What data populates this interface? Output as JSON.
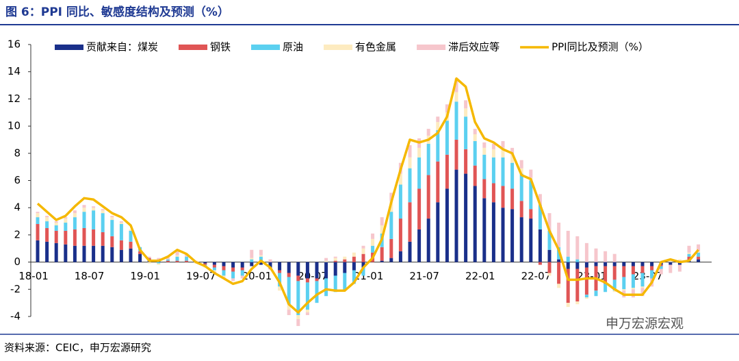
{
  "chart_data": {
    "type": "stacked_bar_line",
    "title": "图 6：PPI 同比、敏感度结构及预测（%）",
    "source": "资料来源：CEIC，申万宏源研究",
    "watermark": "申万宏源宏观",
    "categories": [
      "18-01",
      null,
      null,
      null,
      null,
      null,
      "18-07",
      null,
      null,
      null,
      null,
      null,
      "19-01",
      null,
      null,
      null,
      null,
      null,
      "19-07",
      null,
      null,
      null,
      null,
      null,
      "20-01",
      null,
      null,
      null,
      null,
      null,
      "20-07",
      null,
      null,
      null,
      null,
      null,
      "21-01",
      null,
      null,
      null,
      null,
      null,
      "21-07",
      null,
      null,
      null,
      null,
      null,
      "22-01",
      null,
      null,
      null,
      null,
      null,
      "22-07",
      null,
      null,
      null,
      null,
      null,
      "23-01",
      null,
      null,
      null,
      null,
      null,
      "23-07",
      null,
      null,
      null,
      null,
      null
    ],
    "ylim": [
      -4,
      16
    ],
    "yticks": [
      -4,
      -2,
      0,
      2,
      4,
      6,
      8,
      10,
      12,
      14,
      16
    ],
    "series": [
      {
        "name": "贡献来自：煤炭",
        "color": "#1a2f8a",
        "values": [
          1.6,
          1.5,
          1.4,
          1.3,
          1.2,
          1.2,
          1.2,
          1.2,
          1.1,
          0.9,
          1.0,
          0.6,
          0.2,
          0.1,
          0,
          0,
          0,
          0,
          -0.1,
          -0.2,
          -0.3,
          -0.4,
          -0.4,
          -0.3,
          -0.2,
          -0.4,
          -0.6,
          -0.8,
          -1.0,
          -1.2,
          -1.2,
          -1.2,
          -1.0,
          -0.8,
          -0.6,
          -0.4,
          0,
          0.1,
          0.3,
          0.8,
          1.5,
          2.4,
          3.2,
          4.4,
          5.4,
          6.8,
          6.5,
          5.6,
          4.7,
          4.4,
          4.0,
          3.9,
          3.3,
          3.2,
          2.4,
          0.9,
          0.2,
          -0.5,
          -0.5,
          -0.4,
          -0.3,
          -0.3,
          -0.3,
          -0.3,
          -0.3,
          -0.3,
          -0.3,
          -0.2,
          -0.2,
          -0.2,
          0.1,
          0.2
        ]
      },
      {
        "name": "钢铁",
        "color": "#e05555",
        "values": [
          1.2,
          1.0,
          0.9,
          1.0,
          1.2,
          1.3,
          1.2,
          1.0,
          0.8,
          0.7,
          0.5,
          0.2,
          0.1,
          0,
          0.1,
          0.1,
          0.1,
          0,
          -0.1,
          -0.2,
          -0.3,
          -0.3,
          -0.2,
          0,
          0,
          -0.1,
          -0.2,
          -0.3,
          -0.4,
          -0.3,
          -0.2,
          0,
          0.1,
          0.2,
          0.4,
          0.6,
          0.7,
          1.0,
          1.4,
          2.4,
          2.9,
          3.0,
          3.2,
          3.0,
          2.5,
          2.2,
          1.8,
          1.5,
          1.4,
          1.4,
          1.6,
          1.5,
          1.2,
          0.7,
          -0.2,
          -0.8,
          -1.6,
          -2.5,
          -2.4,
          -2.0,
          -1.8,
          -1.3,
          -1.0,
          -0.8,
          -0.6,
          -0.5,
          -0.3,
          -0.1,
          0,
          0.1,
          0.3,
          0.2
        ]
      },
      {
        "name": "原油",
        "color": "#5bd0f0",
        "values": [
          0.5,
          0.5,
          0.4,
          0.6,
          0.9,
          1.2,
          1.4,
          1.4,
          1.2,
          1.2,
          0.8,
          0.3,
          0,
          -0.1,
          0.1,
          0.3,
          0.3,
          0,
          -0.1,
          -0.2,
          -0.4,
          -0.5,
          -0.4,
          0.2,
          0.4,
          0,
          -1.0,
          -2.0,
          -2.5,
          -2.0,
          -1.6,
          -1.3,
          -1.2,
          -1.3,
          -1.0,
          -0.6,
          0.5,
          1.0,
          2.0,
          2.5,
          2.5,
          2.3,
          2.3,
          2.3,
          2.5,
          2.8,
          2.4,
          1.8,
          1.8,
          1.9,
          2.1,
          1.9,
          2.0,
          2.1,
          1.8,
          1.4,
          0.9,
          0.4,
          0.2,
          -0.2,
          -0.4,
          -0.6,
          -0.8,
          -0.9,
          -1.0,
          -1.0,
          -0.6,
          -0.2,
          0,
          0,
          0.2,
          0.3
        ]
      },
      {
        "name": "有色金属",
        "color": "#fdebc0",
        "values": [
          0.3,
          0.3,
          0.2,
          0.3,
          0.3,
          0.3,
          0.2,
          0.2,
          0.2,
          0.1,
          0.1,
          0,
          -0.1,
          -0.1,
          0,
          0.1,
          0,
          -0.1,
          -0.1,
          -0.1,
          -0.1,
          0,
          0,
          0.1,
          0.1,
          -0.1,
          -0.3,
          -0.4,
          -0.3,
          -0.2,
          0,
          0.1,
          0.2,
          0.2,
          0.3,
          0.4,
          0.5,
          0.6,
          0.8,
          0.8,
          0.8,
          0.7,
          0.6,
          0.6,
          0.6,
          0.7,
          0.6,
          0.5,
          0.5,
          0.6,
          0.7,
          0.6,
          0.4,
          0.2,
          0,
          -0.2,
          -0.3,
          -0.3,
          -0.2,
          -0.1,
          0,
          0,
          -0.1,
          -0.1,
          -0.1,
          -0.1,
          0,
          0.1,
          0.1,
          0.1,
          0.1,
          0.1
        ]
      },
      {
        "name": "滞后效应等",
        "color": "#f6c6cc",
        "values": [
          0.1,
          0.1,
          0.1,
          0.1,
          0.2,
          0.2,
          0.1,
          0.1,
          0.1,
          0.1,
          0,
          0,
          0.1,
          0.2,
          0.2,
          0.3,
          0.2,
          0.1,
          0,
          -0.1,
          -0.1,
          -0.2,
          -0.2,
          0.6,
          0.4,
          0.2,
          0,
          -0.4,
          -0.5,
          -0.2,
          0,
          0.2,
          0.1,
          0,
          0,
          0.2,
          0.4,
          0.6,
          0.6,
          0.8,
          0.9,
          0.7,
          0.5,
          0.4,
          0.6,
          1.0,
          0.6,
          0.4,
          0.4,
          0.4,
          0.5,
          0.5,
          0.6,
          0.6,
          0.8,
          1.3,
          1.8,
          1.9,
          1.7,
          1.4,
          1.0,
          0.8,
          0.6,
          -0.5,
          -0.6,
          -0.6,
          -0.6,
          -0.4,
          -0.6,
          -0.5,
          0.5,
          0.5
        ]
      },
      {
        "name": "PPI同比及预测（%）",
        "color": "#f5b800",
        "kind": "line",
        "values": [
          4.3,
          3.7,
          3.1,
          3.4,
          4.1,
          4.7,
          4.6,
          4.1,
          3.6,
          3.3,
          2.7,
          0.9,
          0.1,
          0.1,
          0.4,
          0.9,
          0.6,
          0.0,
          -0.3,
          -0.8,
          -1.2,
          -1.6,
          -1.4,
          -0.5,
          0.1,
          -0.4,
          -1.5,
          -3.1,
          -3.7,
          -3.0,
          -2.4,
          -2.0,
          -2.1,
          -2.1,
          -1.5,
          -0.4,
          0.3,
          1.7,
          4.4,
          6.8,
          9.0,
          8.8,
          9.0,
          9.5,
          10.7,
          13.5,
          12.9,
          10.3,
          9.1,
          8.8,
          8.3,
          8.0,
          6.4,
          6.1,
          4.2,
          2.3,
          0.9,
          -1.3,
          -1.3,
          -1.2,
          -1.2,
          -1.5,
          -2.0,
          -2.4,
          -2.4,
          -2.4,
          -1.5,
          0.0,
          0.2,
          0.0,
          0.1,
          0.9
        ]
      }
    ]
  }
}
